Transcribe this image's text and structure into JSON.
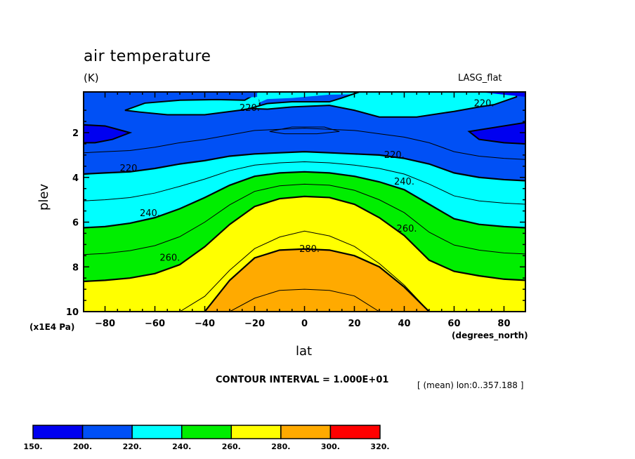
{
  "chart_data": {
    "type": "heatmap",
    "subtype": "filled-contour",
    "title": "air temperature",
    "units": "(K)",
    "dataset": "LASG_flat",
    "xlabel": "lat",
    "x_units": "(degrees_north)",
    "ylabel": "plev",
    "y_units": "(x1E4 Pa)",
    "xlim": [
      -88.6,
      88.6
    ],
    "ylim": [
      0.18,
      10
    ],
    "y_reversed": true,
    "x_ticks": [
      "-80",
      "-60",
      "-40",
      "-20",
      "0",
      "20",
      "40",
      "60",
      "80"
    ],
    "x_tick_values": [
      -80,
      -60,
      -40,
      -20,
      0,
      20,
      40,
      60,
      80
    ],
    "y_ticks": [
      "2",
      "4",
      "6",
      "8",
      "10"
    ],
    "y_tick_values": [
      2,
      4,
      6,
      8,
      10
    ],
    "contour_interval_text": "CONTOUR INTERVAL = 1.000E+01",
    "mean_text": "[ (mean) lon:0..357.188 ]",
    "contour_labels": [
      {
        "text": "220.",
        "lat": -22,
        "plev": 0.9
      },
      {
        "text": "220.",
        "lat": 72,
        "plev": 0.7
      },
      {
        "text": "220.",
        "lat": 36,
        "plev": 3.0
      },
      {
        "text": "220.",
        "lat": -70,
        "plev": 3.6
      },
      {
        "text": "240.",
        "lat": 40,
        "plev": 4.2
      },
      {
        "text": "240.",
        "lat": -62,
        "plev": 5.6
      },
      {
        "text": "260.",
        "lat": 41,
        "plev": 6.3
      },
      {
        "text": "260.",
        "lat": -54,
        "plev": 7.6
      },
      {
        "text": "280.",
        "lat": 2,
        "plev": 7.2
      }
    ],
    "lat_grid": [
      -88.6,
      -80,
      -70,
      -60,
      -50,
      -40,
      -30,
      -20,
      -10,
      0,
      10,
      20,
      30,
      40,
      50,
      60,
      70,
      80,
      88.6
    ],
    "contour_levels": [
      {
        "level": 280,
        "plev": [
          null,
          null,
          null,
          null,
          null,
          10.0,
          8.6,
          7.6,
          7.25,
          7.2,
          7.25,
          7.5,
          8.0,
          8.9,
          10.0,
          null,
          null,
          null,
          null
        ]
      },
      {
        "level": 260,
        "plev": [
          8.65,
          8.6,
          8.5,
          8.3,
          7.9,
          7.1,
          6.1,
          5.3,
          4.95,
          4.85,
          4.9,
          5.2,
          5.8,
          6.6,
          7.7,
          8.2,
          8.4,
          8.55,
          8.6
        ]
      },
      {
        "level": 240,
        "plev": [
          6.25,
          6.2,
          6.05,
          5.8,
          5.4,
          4.9,
          4.35,
          3.95,
          3.8,
          3.75,
          3.8,
          3.95,
          4.2,
          4.55,
          5.2,
          5.85,
          6.1,
          6.2,
          6.25
        ]
      },
      {
        "level": 220,
        "plev": [
          3.85,
          3.8,
          3.75,
          3.6,
          3.4,
          3.25,
          3.05,
          2.95,
          2.9,
          2.85,
          2.9,
          2.95,
          3.0,
          3.15,
          3.4,
          3.8,
          4.0,
          4.1,
          4.15
        ]
      }
    ],
    "upper_regions": [
      {
        "level_band": "220-240",
        "description_values": "upper-tropospheric cyan cells",
        "lat": [
          -70,
          -60,
          -40,
          -20,
          -10,
          0,
          10,
          20,
          40,
          60,
          72
        ],
        "plev_top": [
          null,
          0.7,
          0.6,
          0.55,
          0.2,
          0.2,
          0.2,
          0.55,
          0.55,
          0.6,
          0.8
        ],
        "plev_bottom": [
          null,
          1.2,
          1.35,
          1.1,
          0.9,
          0.85,
          0.9,
          1.2,
          1.3,
          1.3,
          1.0
        ]
      },
      {
        "level_band": "150-200",
        "lat": [
          -88.6,
          -70,
          70,
          88.6
        ],
        "plev": [
          1.7,
          2.5
        ]
      }
    ],
    "colorbar": {
      "levels": [
        "150.",
        "200.",
        "220.",
        "240.",
        "260.",
        "280.",
        "300.",
        "320."
      ],
      "colors": [
        "#0000f0",
        "#0050f5",
        "#00ffff",
        "#00ee00",
        "#ffff00",
        "#ffaa00",
        "#ff0000"
      ]
    }
  },
  "colors": {
    "band_150_200": "#0000f0",
    "band_200_220": "#0050f5",
    "band_220_240": "#00ffff",
    "band_240_260": "#00ee00",
    "band_260_280": "#ffff00",
    "band_280_300": "#ffaa00",
    "band_300_320": "#ff0000"
  }
}
